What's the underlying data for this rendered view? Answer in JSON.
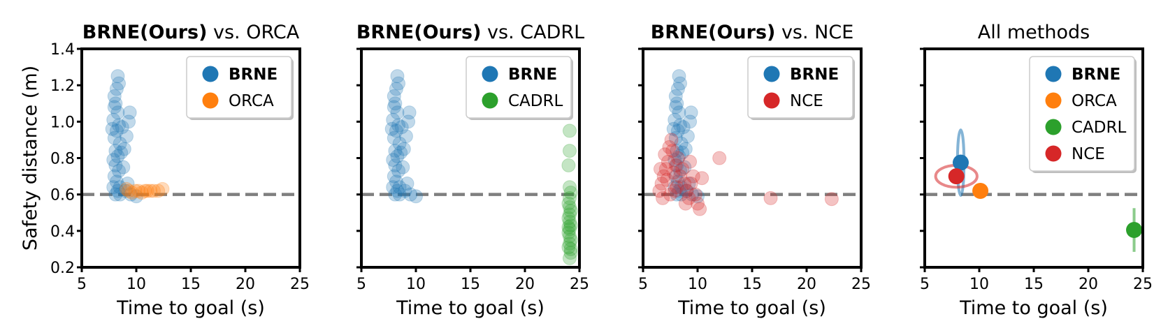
{
  "chart_data": [
    {
      "type": "scatter",
      "title_bold": "BRNE(Ours)",
      "title_rest": " vs. ORCA",
      "xlabel": "Time to goal (s)",
      "ylabel": "Safety distance (m)",
      "xlim": [
        5,
        25
      ],
      "ylim": [
        0.2,
        1.4
      ],
      "xticks": [
        "5",
        "10",
        "15",
        "20",
        "25"
      ],
      "yticks": [
        "0.2",
        "0.4",
        "0.6",
        "0.8",
        "1.0",
        "1.2",
        "1.4"
      ],
      "reference_line_y": 0.6,
      "legend_position": "top-right",
      "series": [
        {
          "name": "BRNE",
          "bold": true,
          "color": "#1f77b4",
          "points": [
            [
              8.1,
              0.6
            ],
            [
              8.3,
              0.62
            ],
            [
              7.9,
              0.64
            ],
            [
              8.5,
              0.6
            ],
            [
              8.2,
              0.67
            ],
            [
              8.0,
              0.7
            ],
            [
              8.4,
              0.73
            ],
            [
              8.1,
              0.76
            ],
            [
              7.9,
              0.79
            ],
            [
              8.3,
              0.81
            ],
            [
              8.1,
              0.84
            ],
            [
              8.5,
              0.88
            ],
            [
              8.0,
              0.91
            ],
            [
              8.2,
              0.95
            ],
            [
              8.4,
              0.98
            ],
            [
              7.9,
              1.01
            ],
            [
              8.3,
              1.05
            ],
            [
              8.1,
              1.1
            ],
            [
              8.0,
              1.14
            ],
            [
              8.2,
              1.18
            ],
            [
              8.4,
              1.21
            ],
            [
              8.3,
              1.25
            ],
            [
              9.0,
              0.62
            ],
            [
              9.5,
              0.6
            ],
            [
              10.0,
              0.59
            ],
            [
              9.2,
              0.66
            ],
            [
              9.3,
              1.0
            ],
            [
              9.4,
              1.05
            ],
            [
              8.9,
              0.85
            ],
            [
              9.1,
              0.92
            ],
            [
              8.6,
              0.83
            ],
            [
              8.8,
              0.75
            ],
            [
              7.8,
              0.96
            ],
            [
              8.7,
              0.97
            ],
            [
              8.0,
              1.08
            ],
            [
              8.5,
              0.64
            ]
          ]
        },
        {
          "name": "ORCA",
          "bold": false,
          "color": "#ff7f0e",
          "points": [
            [
              9.3,
              0.62
            ],
            [
              9.6,
              0.61
            ],
            [
              9.9,
              0.62
            ],
            [
              10.2,
              0.62
            ],
            [
              10.5,
              0.61
            ],
            [
              10.8,
              0.62
            ],
            [
              11.0,
              0.62
            ],
            [
              11.3,
              0.62
            ],
            [
              11.6,
              0.62
            ],
            [
              12.0,
              0.62
            ],
            [
              12.4,
              0.63
            ],
            [
              9.1,
              0.63
            ]
          ]
        }
      ]
    },
    {
      "type": "scatter",
      "title_bold": "BRNE(Ours)",
      "title_rest": " vs. CADRL",
      "xlabel": "Time to goal (s)",
      "xlim": [
        5,
        25
      ],
      "ylim": [
        0.2,
        1.4
      ],
      "xticks": [
        "5",
        "10",
        "15",
        "20",
        "25"
      ],
      "reference_line_y": 0.6,
      "legend_position": "top-right",
      "series": [
        {
          "name": "BRNE",
          "bold": true,
          "color": "#1f77b4",
          "points": [
            [
              8.1,
              0.6
            ],
            [
              8.3,
              0.62
            ],
            [
              7.9,
              0.64
            ],
            [
              8.5,
              0.6
            ],
            [
              8.2,
              0.67
            ],
            [
              8.0,
              0.7
            ],
            [
              8.4,
              0.73
            ],
            [
              8.1,
              0.76
            ],
            [
              7.9,
              0.79
            ],
            [
              8.3,
              0.81
            ],
            [
              8.1,
              0.84
            ],
            [
              8.5,
              0.88
            ],
            [
              8.0,
              0.91
            ],
            [
              8.2,
              0.95
            ],
            [
              8.4,
              0.98
            ],
            [
              7.9,
              1.01
            ],
            [
              8.3,
              1.05
            ],
            [
              8.1,
              1.1
            ],
            [
              8.0,
              1.14
            ],
            [
              8.2,
              1.18
            ],
            [
              8.4,
              1.21
            ],
            [
              8.3,
              1.25
            ],
            [
              9.0,
              0.62
            ],
            [
              9.5,
              0.6
            ],
            [
              10.0,
              0.59
            ],
            [
              9.2,
              0.66
            ],
            [
              9.3,
              1.0
            ],
            [
              9.4,
              1.05
            ],
            [
              8.9,
              0.85
            ],
            [
              9.1,
              0.92
            ],
            [
              8.6,
              0.83
            ],
            [
              8.8,
              0.75
            ],
            [
              7.8,
              0.96
            ],
            [
              8.7,
              0.97
            ],
            [
              8.0,
              1.08
            ],
            [
              8.5,
              0.64
            ]
          ]
        },
        {
          "name": "CADRL",
          "bold": false,
          "color": "#2ca02c",
          "points": [
            [
              24.1,
              0.25
            ],
            [
              24.2,
              0.28
            ],
            [
              24.0,
              0.31
            ],
            [
              24.1,
              0.33
            ],
            [
              24.2,
              0.35
            ],
            [
              24.1,
              0.37
            ],
            [
              24.0,
              0.39
            ],
            [
              24.1,
              0.41
            ],
            [
              24.2,
              0.43
            ],
            [
              24.1,
              0.45
            ],
            [
              24.0,
              0.47
            ],
            [
              24.1,
              0.49
            ],
            [
              24.2,
              0.51
            ],
            [
              24.1,
              0.53
            ],
            [
              24.0,
              0.55
            ],
            [
              24.1,
              0.58
            ],
            [
              24.2,
              0.61
            ],
            [
              24.1,
              0.64
            ],
            [
              24.0,
              0.76
            ],
            [
              24.1,
              0.84
            ],
            [
              24.1,
              0.95
            ],
            [
              24.2,
              0.3
            ],
            [
              24.0,
              0.42
            ]
          ]
        }
      ]
    },
    {
      "type": "scatter",
      "title_bold": "BRNE(Ours)",
      "title_rest": " vs. NCE",
      "xlabel": "Time to goal (s)",
      "xlim": [
        5,
        25
      ],
      "ylim": [
        0.2,
        1.4
      ],
      "xticks": [
        "5",
        "10",
        "15",
        "20",
        "25"
      ],
      "reference_line_y": 0.6,
      "legend_position": "top-right",
      "series": [
        {
          "name": "BRNE",
          "bold": true,
          "color": "#1f77b4",
          "points": [
            [
              8.1,
              0.6
            ],
            [
              8.3,
              0.62
            ],
            [
              7.9,
              0.64
            ],
            [
              8.5,
              0.6
            ],
            [
              8.2,
              0.67
            ],
            [
              8.0,
              0.7
            ],
            [
              8.4,
              0.73
            ],
            [
              8.1,
              0.76
            ],
            [
              7.9,
              0.79
            ],
            [
              8.3,
              0.81
            ],
            [
              8.1,
              0.84
            ],
            [
              8.5,
              0.88
            ],
            [
              8.0,
              0.91
            ],
            [
              8.2,
              0.95
            ],
            [
              8.4,
              0.98
            ],
            [
              7.9,
              1.01
            ],
            [
              8.3,
              1.05
            ],
            [
              8.1,
              1.1
            ],
            [
              8.0,
              1.14
            ],
            [
              8.2,
              1.18
            ],
            [
              8.4,
              1.21
            ],
            [
              8.3,
              1.25
            ],
            [
              9.0,
              0.62
            ],
            [
              9.5,
              0.6
            ],
            [
              10.0,
              0.59
            ],
            [
              9.2,
              0.66
            ],
            [
              9.3,
              1.0
            ],
            [
              9.4,
              1.05
            ],
            [
              8.9,
              0.85
            ],
            [
              9.1,
              0.92
            ],
            [
              8.6,
              0.83
            ],
            [
              8.8,
              0.75
            ],
            [
              7.8,
              0.96
            ],
            [
              8.7,
              0.97
            ],
            [
              8.0,
              1.08
            ],
            [
              8.5,
              0.64
            ]
          ]
        },
        {
          "name": "NCE",
          "bold": false,
          "color": "#d62728",
          "points": [
            [
              6.5,
              0.62
            ],
            [
              6.7,
              0.66
            ],
            [
              6.9,
              0.7
            ],
            [
              7.1,
              0.74
            ],
            [
              7.3,
              0.78
            ],
            [
              7.0,
              0.82
            ],
            [
              7.4,
              0.86
            ],
            [
              7.6,
              0.9
            ],
            [
              7.2,
              0.68
            ],
            [
              7.8,
              0.72
            ],
            [
              8.0,
              0.76
            ],
            [
              8.2,
              0.8
            ],
            [
              8.4,
              0.7
            ],
            [
              8.6,
              0.74
            ],
            [
              8.8,
              0.66
            ],
            [
              9.0,
              0.62
            ],
            [
              9.2,
              0.58
            ],
            [
              9.4,
              0.66
            ],
            [
              9.6,
              0.7
            ],
            [
              9.8,
              0.6
            ],
            [
              10.0,
              0.55
            ],
            [
              10.2,
              0.52
            ],
            [
              10.4,
              0.69
            ],
            [
              12.0,
              0.8
            ],
            [
              16.7,
              0.58
            ],
            [
              22.3,
              0.575
            ],
            [
              6.8,
              0.58
            ],
            [
              7.5,
              0.6
            ],
            [
              8.1,
              0.64
            ],
            [
              8.9,
              0.55
            ],
            [
              9.3,
              0.78
            ],
            [
              7.7,
              0.84
            ],
            [
              6.6,
              0.74
            ],
            [
              7.9,
              0.62
            ]
          ]
        }
      ]
    },
    {
      "type": "scatter",
      "title": "All methods",
      "xlabel": "Time to goal (s)",
      "xlim": [
        5,
        25
      ],
      "ylim": [
        0.2,
        1.4
      ],
      "xticks": [
        "5",
        "10",
        "15",
        "20",
        "25"
      ],
      "reference_line_y": 0.6,
      "legend_position": "top-right",
      "series": [
        {
          "name": "BRNE",
          "bold": true,
          "color": "#1f77b4",
          "mean": [
            8.3,
            0.775
          ],
          "spread_x": 0.3,
          "spread_y": 0.18
        },
        {
          "name": "ORCA",
          "bold": false,
          "color": "#ff7f0e",
          "mean": [
            10.1,
            0.62
          ],
          "spread_x": 0.25,
          "spread_y": 0.01
        },
        {
          "name": "CADRL",
          "bold": false,
          "color": "#2ca02c",
          "mean": [
            24.2,
            0.405
          ],
          "spread_x": 0.08,
          "spread_y": 0.12
        },
        {
          "name": "NCE",
          "bold": false,
          "color": "#d62728",
          "mean": [
            7.9,
            0.7
          ],
          "spread_x": 1.9,
          "spread_y": 0.06
        }
      ]
    }
  ]
}
